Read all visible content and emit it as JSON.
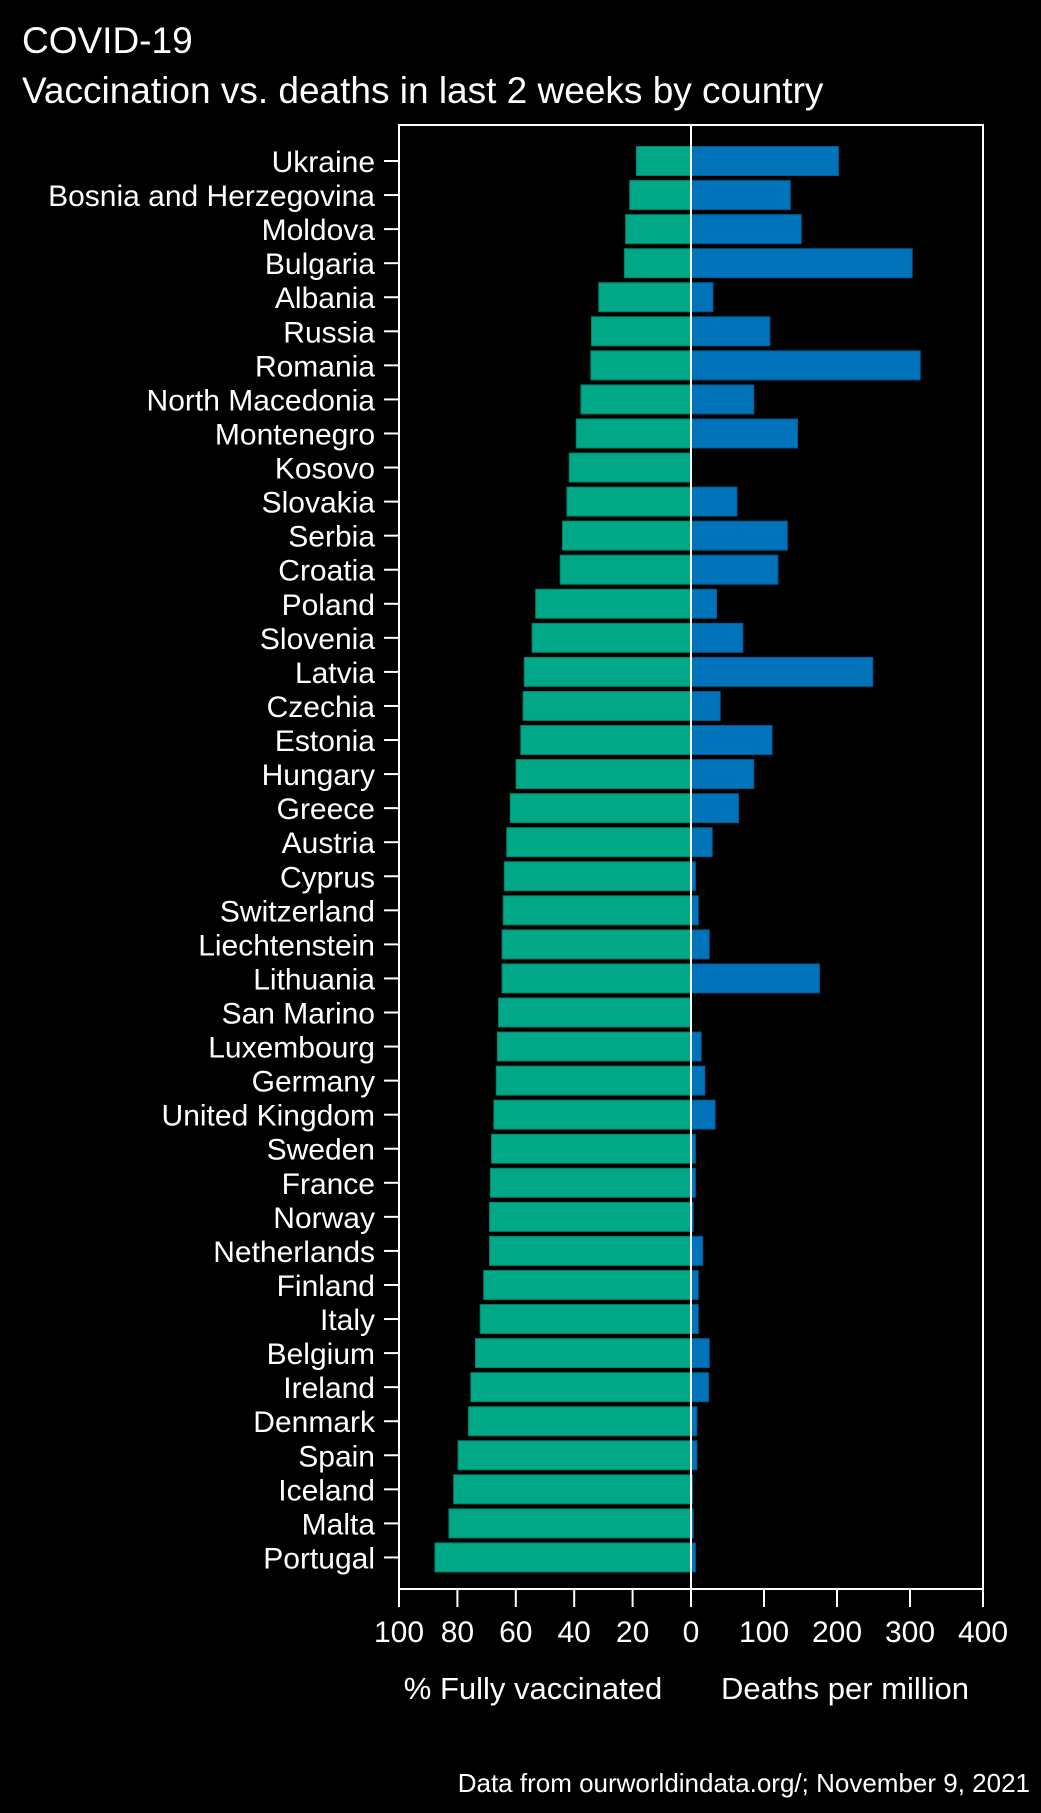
{
  "chart_data": {
    "type": "bar",
    "orientation": "horizontal-diverging",
    "title": "COVID-19",
    "subtitle": "Vaccination vs. deaths in last 2 weeks by country",
    "categories": [
      "Ukraine",
      "Bosnia and Herzegovina",
      "Moldova",
      "Bulgaria",
      "Albania",
      "Russia",
      "Romania",
      "North Macedonia",
      "Montenegro",
      "Kosovo",
      "Slovakia",
      "Serbia",
      "Croatia",
      "Poland",
      "Slovenia",
      "Latvia",
      "Czechia",
      "Estonia",
      "Hungary",
      "Greece",
      "Austria",
      "Cyprus",
      "Switzerland",
      "Liechtenstein",
      "Lithuania",
      "San Marino",
      "Luxembourg",
      "Germany",
      "United Kingdom",
      "Sweden",
      "France",
      "Norway",
      "Netherlands",
      "Finland",
      "Italy",
      "Belgium",
      "Ireland",
      "Denmark",
      "Spain",
      "Iceland",
      "Malta",
      "Portugal"
    ],
    "series": [
      {
        "name": "% Fully vaccinated",
        "color": "#00a887",
        "values": [
          18.7,
          21.0,
          22.4,
          22.8,
          31.6,
          34.1,
          34.3,
          37.7,
          39.3,
          41.7,
          42.5,
          44.0,
          44.8,
          53.2,
          54.4,
          57.1,
          57.5,
          58.3,
          59.9,
          61.9,
          63.1,
          63.9,
          64.3,
          64.7,
          64.7,
          65.9,
          66.3,
          66.7,
          67.5,
          68.3,
          68.7,
          69.0,
          69.0,
          71.0,
          72.2,
          73.8,
          75.4,
          76.2,
          79.8,
          81.3,
          82.9,
          87.7
        ]
      },
      {
        "name": "Deaths per million",
        "color": "#0073bb",
        "values": [
          202,
          136,
          151,
          303,
          30,
          108,
          314,
          86,
          146,
          0,
          63,
          132,
          119,
          35,
          71,
          249,
          40,
          111,
          86,
          65,
          29,
          6,
          10,
          25,
          176,
          0,
          14,
          19,
          33,
          6,
          6,
          3,
          16,
          10,
          10,
          25,
          24,
          8,
          8,
          2,
          3,
          6
        ]
      }
    ],
    "left_axis": {
      "label": "% Fully vaccinated",
      "range": [
        100,
        0
      ],
      "ticks": [
        "100",
        "80",
        "60",
        "40",
        "20",
        "0"
      ]
    },
    "right_axis": {
      "label": "Deaths per million",
      "range": [
        0,
        400
      ],
      "ticks": [
        "100",
        "200",
        "300",
        "400"
      ]
    },
    "source": "Data from ourworldindata.org/;  November 9, 2021",
    "grid": false,
    "legend": "none"
  }
}
